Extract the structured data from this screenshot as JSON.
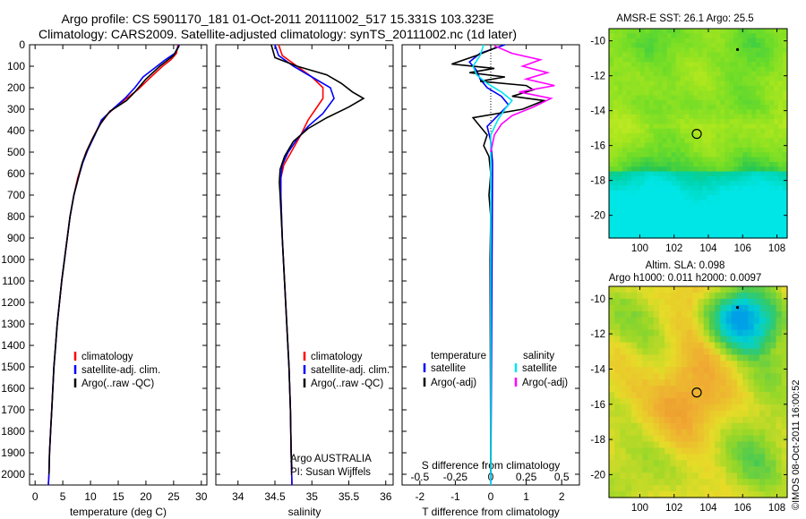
{
  "header": {
    "line1": "Argo profile: CS 5901170_181 01-Oct-2011 20111002_517 15.331S 103.323E",
    "line2": "Climatology: CARS2009. Satellite-adjusted climatology: synTS_20111002.nc (1d later)"
  },
  "colors": {
    "climatology": "#ff0000",
    "satellite": "#0000ff",
    "argo": "#000000",
    "sal_satellite": "#00e5ee",
    "sal_argo": "#ff00ff"
  },
  "chart_data": [
    {
      "type": "line",
      "panel": "temperature",
      "xlabel": "temperature (deg C)",
      "xlim": [
        -1,
        31
      ],
      "xticks": [
        0,
        5,
        10,
        15,
        20,
        25,
        30
      ],
      "ylim": [
        0,
        2050
      ],
      "yticks": [
        0,
        100,
        200,
        300,
        400,
        500,
        600,
        700,
        800,
        900,
        1000,
        1100,
        1200,
        1300,
        1400,
        1500,
        1600,
        1700,
        1800,
        1900,
        2000
      ],
      "legend": [
        "climatology",
        "satellite-adj. clim.",
        "Argo(..raw -QC)"
      ],
      "series": [
        {
          "name": "climatology",
          "color": "#ff0000",
          "points": [
            [
              25.8,
              0
            ],
            [
              25.5,
              40
            ],
            [
              24.5,
              70
            ],
            [
              23,
              100
            ],
            [
              20.5,
              160
            ],
            [
              18.5,
              210
            ],
            [
              16,
              260
            ],
            [
              13.2,
              320
            ],
            [
              11.5,
              380
            ],
            [
              10.3,
              440
            ],
            [
              9.2,
              500
            ],
            [
              8.4,
              560
            ],
            [
              7.7,
              620
            ],
            [
              7,
              700
            ],
            [
              6.3,
              800
            ],
            [
              5.8,
              900
            ],
            [
              5.3,
              1000
            ],
            [
              4.8,
              1100
            ],
            [
              4.4,
              1200
            ],
            [
              4,
              1300
            ],
            [
              3.7,
              1400
            ],
            [
              3.4,
              1500
            ],
            [
              3.2,
              1600
            ],
            [
              3,
              1700
            ],
            [
              2.8,
              1800
            ],
            [
              2.6,
              1900
            ],
            [
              2.5,
              2000
            ],
            [
              2.4,
              2050
            ]
          ]
        },
        {
          "name": "satellite-adj. clim.",
          "color": "#0000ff",
          "points": [
            [
              26,
              0
            ],
            [
              25.2,
              40
            ],
            [
              23.5,
              70
            ],
            [
              22,
              100
            ],
            [
              19.5,
              150
            ],
            [
              18,
              200
            ],
            [
              16.2,
              250
            ],
            [
              14,
              300
            ],
            [
              12,
              350
            ],
            [
              10.8,
              420
            ],
            [
              9.5,
              490
            ],
            [
              8.6,
              550
            ],
            [
              7.8,
              620
            ],
            [
              7,
              700
            ],
            [
              6.3,
              800
            ],
            [
              5.8,
              900
            ],
            [
              5.3,
              1000
            ],
            [
              4.8,
              1100
            ],
            [
              4.4,
              1200
            ],
            [
              4,
              1300
            ],
            [
              3.7,
              1400
            ],
            [
              3.4,
              1500
            ],
            [
              3.2,
              1600
            ],
            [
              3,
              1700
            ],
            [
              2.8,
              1800
            ],
            [
              2.6,
              1900
            ],
            [
              2.5,
              2000
            ],
            [
              2.4,
              2050
            ]
          ]
        },
        {
          "name": "Argo(..raw -QC)",
          "color": "#000000",
          "points": [
            [
              26,
              5
            ],
            [
              25,
              50
            ],
            [
              22.5,
              100
            ],
            [
              20,
              160
            ],
            [
              18,
              220
            ],
            [
              16.5,
              260
            ],
            [
              13.5,
              310
            ],
            [
              12,
              360
            ],
            [
              10.5,
              430
            ],
            [
              9.4,
              490
            ],
            [
              8.5,
              550
            ],
            [
              7.8,
              620
            ],
            [
              7,
              700
            ],
            [
              6.3,
              800
            ],
            [
              5.8,
              900
            ],
            [
              5.3,
              1000
            ],
            [
              4.8,
              1100
            ],
            [
              4.4,
              1200
            ],
            [
              4,
              1300
            ],
            [
              3.7,
              1400
            ],
            [
              3.4,
              1500
            ],
            [
              3.2,
              1600
            ],
            [
              3,
              1700
            ],
            [
              2.8,
              1800
            ],
            [
              2.6,
              1900
            ],
            [
              2.5,
              2000
            ]
          ]
        }
      ]
    },
    {
      "type": "line",
      "panel": "salinity",
      "xlabel": "salinity",
      "xlim": [
        33.7,
        36.1
      ],
      "xticks": [
        34,
        34.5,
        35,
        35.5,
        36
      ],
      "ylim": [
        0,
        2050
      ],
      "legend": [
        "climatology",
        "satellite-adj. clim.",
        "Argo(..raw -QC)"
      ],
      "footnote": [
        "Argo AUSTRALIA",
        "PI: Susan Wijffels"
      ],
      "series": [
        {
          "name": "climatology",
          "color": "#ff0000",
          "points": [
            [
              34.55,
              0
            ],
            [
              34.6,
              50
            ],
            [
              34.8,
              100
            ],
            [
              35,
              150
            ],
            [
              35.15,
              200
            ],
            [
              35.15,
              250
            ],
            [
              35.05,
              300
            ],
            [
              34.95,
              350
            ],
            [
              34.85,
              420
            ],
            [
              34.72,
              500
            ],
            [
              34.62,
              560
            ],
            [
              34.58,
              620
            ],
            [
              34.58,
              700
            ],
            [
              34.6,
              900
            ],
            [
              34.63,
              1100
            ],
            [
              34.66,
              1300
            ],
            [
              34.69,
              1500
            ],
            [
              34.71,
              1700
            ],
            [
              34.72,
              1900
            ],
            [
              34.73,
              2050
            ]
          ]
        },
        {
          "name": "satellite-adj. clim.",
          "color": "#0000ff",
          "points": [
            [
              34.5,
              0
            ],
            [
              34.55,
              50
            ],
            [
              34.75,
              100
            ],
            [
              35,
              150
            ],
            [
              35.25,
              200
            ],
            [
              35.3,
              250
            ],
            [
              35.15,
              320
            ],
            [
              34.95,
              380
            ],
            [
              34.8,
              440
            ],
            [
              34.68,
              500
            ],
            [
              34.6,
              560
            ],
            [
              34.58,
              620
            ],
            [
              34.58,
              700
            ],
            [
              34.6,
              900
            ],
            [
              34.63,
              1100
            ],
            [
              34.66,
              1300
            ],
            [
              34.69,
              1500
            ],
            [
              34.71,
              1700
            ],
            [
              34.72,
              1900
            ],
            [
              34.73,
              2050
            ]
          ]
        },
        {
          "name": "Argo(..raw -QC)",
          "color": "#000000",
          "points": [
            [
              34.45,
              0
            ],
            [
              34.5,
              60
            ],
            [
              34.8,
              100
            ],
            [
              35.2,
              140
            ],
            [
              35.4,
              180
            ],
            [
              35.55,
              220
            ],
            [
              35.7,
              250
            ],
            [
              35.5,
              290
            ],
            [
              35.2,
              340
            ],
            [
              34.95,
              390
            ],
            [
              34.75,
              450
            ],
            [
              34.63,
              520
            ],
            [
              34.57,
              580
            ],
            [
              34.56,
              640
            ],
            [
              34.57,
              700
            ],
            [
              34.6,
              900
            ],
            [
              34.63,
              1100
            ],
            [
              34.66,
              1300
            ],
            [
              34.69,
              1500
            ],
            [
              34.71,
              1700
            ],
            [
              34.72,
              1900
            ],
            [
              34.73,
              1980
            ]
          ]
        }
      ]
    },
    {
      "type": "line",
      "panel": "difference",
      "xlabel": "T difference from climatology",
      "xlabel_top": "S difference from climatology",
      "xlim": [
        -2.5,
        2.5
      ],
      "xticks": [
        -2,
        -1,
        0,
        1,
        2
      ],
      "sticks": [
        [
          -2,
          "-0.5"
        ],
        [
          -1,
          "-0.25"
        ],
        [
          0,
          "0"
        ],
        [
          1,
          "0.25"
        ],
        [
          2,
          "0.5"
        ]
      ],
      "ylim": [
        0,
        2050
      ],
      "legend_temperature": {
        "title": "temperature",
        "entries": [
          "satellite",
          "Argo(-adj)"
        ]
      },
      "legend_salinity": {
        "title": "salinity",
        "entries": [
          "satellite",
          "Argo(-adj)"
        ]
      },
      "series": [
        {
          "name": "temperature satellite",
          "color": "#0000ff",
          "points": [
            [
              0.4,
              0
            ],
            [
              -0.3,
              40
            ],
            [
              -0.6,
              80
            ],
            [
              -0.4,
              120
            ],
            [
              -0.3,
              160
            ],
            [
              -0.1,
              200
            ],
            [
              0.3,
              240
            ],
            [
              0.5,
              280
            ],
            [
              0.2,
              330
            ],
            [
              -0.1,
              380
            ],
            [
              0,
              450
            ],
            [
              0.05,
              550
            ],
            [
              0,
              2050
            ]
          ]
        },
        {
          "name": "temperature Argo(-adj)",
          "color": "#000000",
          "points": [
            [
              0.2,
              10
            ],
            [
              -0.4,
              50
            ],
            [
              -1.1,
              90
            ],
            [
              0.1,
              110
            ],
            [
              -0.6,
              130
            ],
            [
              0.4,
              150
            ],
            [
              -0.3,
              170
            ],
            [
              1,
              190
            ],
            [
              1.2,
              210
            ],
            [
              0.6,
              240
            ],
            [
              1.5,
              260
            ],
            [
              0.9,
              300
            ],
            [
              -0.5,
              340
            ],
            [
              -0.3,
              380
            ],
            [
              -0.1,
              420
            ],
            [
              -0.2,
              470
            ],
            [
              -0.05,
              520
            ],
            [
              0,
              600
            ],
            [
              -0.05,
              700
            ],
            [
              0,
              800
            ],
            [
              -0.02,
              1000
            ],
            [
              0,
              2000
            ]
          ]
        },
        {
          "name": "salinity satellite",
          "color": "#00e5ee",
          "points": [
            [
              -0.2,
              0
            ],
            [
              -0.3,
              50
            ],
            [
              -0.5,
              100
            ],
            [
              -0.4,
              140
            ],
            [
              -0.1,
              180
            ],
            [
              0.3,
              220
            ],
            [
              0.6,
              260
            ],
            [
              0.4,
              300
            ],
            [
              0.2,
              350
            ],
            [
              0,
              420
            ],
            [
              0,
              2050
            ]
          ]
        },
        {
          "name": "salinity Argo(-adj)",
          "color": "#ff00ff",
          "points": [
            [
              0.1,
              5
            ],
            [
              0.6,
              40
            ],
            [
              1.4,
              70
            ],
            [
              0.9,
              100
            ],
            [
              1.6,
              130
            ],
            [
              1,
              160
            ],
            [
              1.8,
              190
            ],
            [
              0.8,
              220
            ],
            [
              1.7,
              250
            ],
            [
              1.2,
              290
            ],
            [
              0.6,
              330
            ],
            [
              0.3,
              370
            ],
            [
              0.1,
              420
            ],
            [
              0,
              500
            ]
          ]
        }
      ]
    },
    {
      "type": "heatmap",
      "panel": "sst-map",
      "title": "AMSR-E SST: 26.1  Argo: 25.5",
      "xlim": [
        98.2,
        108.6
      ],
      "xticks": [
        100,
        102,
        104,
        106,
        108
      ],
      "ylim": [
        -21.3,
        -9.3
      ],
      "yticks": [
        -10,
        -12,
        -14,
        -16,
        -18,
        -20
      ],
      "marker": [
        103.323,
        -15.331
      ],
      "secondary_marker": [
        105.7,
        -10.5
      ]
    },
    {
      "type": "heatmap",
      "panel": "sla-map",
      "title": "Altim. SLA: 0.098",
      "subtitle": "Argo h1000: 0.011 h2000: 0.0097",
      "xlim": [
        98.2,
        108.6
      ],
      "xticks": [
        100,
        102,
        104,
        106,
        108
      ],
      "ylim": [
        -21.3,
        -9.3
      ],
      "yticks": [
        -10,
        -12,
        -14,
        -16,
        -18,
        -20
      ],
      "marker": [
        103.323,
        -15.331
      ],
      "secondary_marker": [
        105.7,
        -10.5
      ]
    }
  ],
  "side_text": "©IMOS 08-Oct-2011 16:00:52"
}
